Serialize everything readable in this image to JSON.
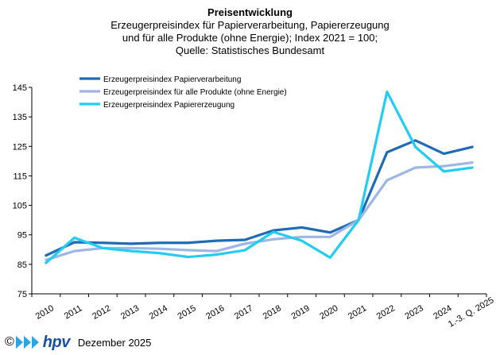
{
  "chart_data": {
    "type": "line",
    "title": "Preisentwicklung",
    "subtitle_lines": [
      "Erzeugerpreisindex für Papierverarbeitung, Papiererzeugung",
      "und für alle Produkte (ohne Energie); Index 2021 = 100;",
      "Quelle: Statistisches Bundesamt"
    ],
    "categories": [
      "2010",
      "2011",
      "2012",
      "2013",
      "2014",
      "2015",
      "2016",
      "2017",
      "2018",
      "2019",
      "2020",
      "2021",
      "2022",
      "2023",
      "2024",
      "2025"
    ],
    "category_labels": [
      [
        "2010"
      ],
      [
        "2011"
      ],
      [
        "2012"
      ],
      [
        "2013"
      ],
      [
        "2014"
      ],
      [
        "2015"
      ],
      [
        "2016"
      ],
      [
        "2017"
      ],
      [
        "2018"
      ],
      [
        "2019"
      ],
      [
        "2020"
      ],
      [
        "2021"
      ],
      [
        "2022"
      ],
      [
        "2023"
      ],
      [
        "2024"
      ],
      [
        "1.-3. Q. 2025"
      ]
    ],
    "ylim": [
      75,
      145
    ],
    "yticks": [
      75,
      85,
      95,
      105,
      115,
      125,
      135,
      145
    ],
    "grid": false,
    "legend_position": "top-left",
    "series": [
      {
        "name": "Erzeugerpreisindex Papierverarbeitung",
        "color": "#1f6cb5",
        "values": [
          88.0,
          92.5,
          92.3,
          92.0,
          92.3,
          92.3,
          93.0,
          93.3,
          96.5,
          97.5,
          95.8,
          100.0,
          123.0,
          127.0,
          122.5,
          124.8
        ]
      },
      {
        "name": "Erzeugerpreisindex für alle Produkte (ohne Energie)",
        "color": "#9db6e3",
        "values": [
          86.5,
          89.5,
          90.5,
          90.5,
          90.3,
          89.8,
          89.5,
          92.0,
          93.5,
          94.3,
          94.3,
          100.0,
          113.5,
          117.8,
          118.3,
          119.5
        ]
      },
      {
        "name": "Erzeugerpreisindex Papiererzeugung",
        "color": "#22ccf2",
        "values": [
          85.5,
          94.0,
          90.5,
          89.5,
          88.8,
          87.5,
          88.3,
          89.8,
          96.0,
          93.0,
          87.3,
          100.0,
          143.5,
          124.8,
          116.5,
          117.8
        ]
      }
    ]
  },
  "footer": {
    "copyright": "©",
    "logo_text": "hpv",
    "date": "Dezember 2025"
  }
}
